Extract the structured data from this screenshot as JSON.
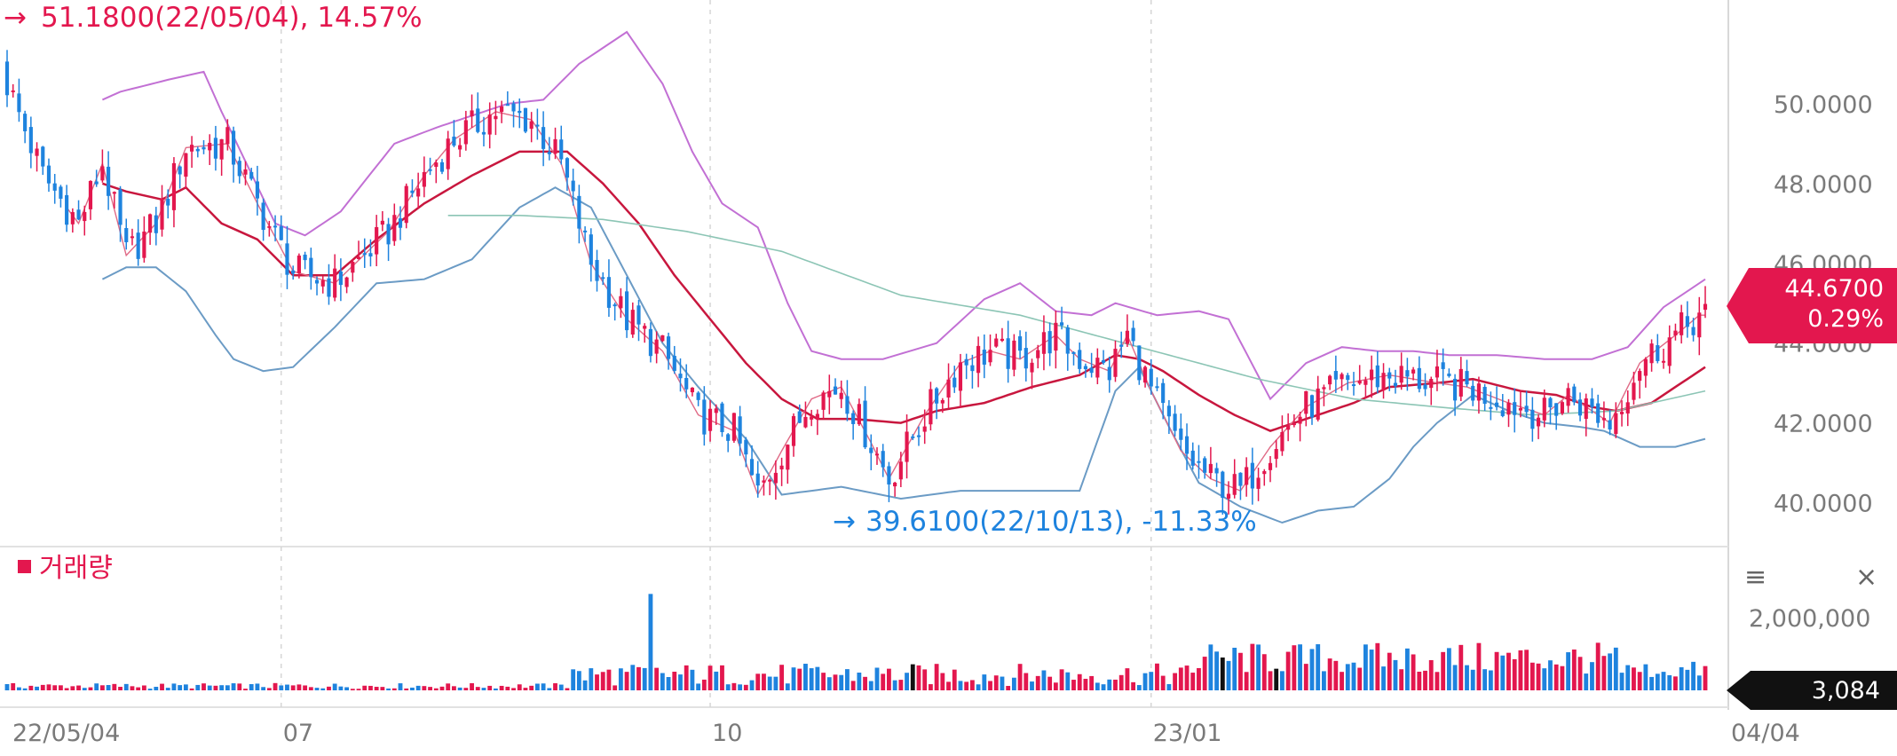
{
  "chart_data": {
    "type": "candlestick",
    "x_ticks": [
      "22/05/04",
      "07",
      "10",
      "23/01",
      "04/04"
    ],
    "y_ticks": [
      "40.0000",
      "42.0000",
      "44.0000",
      "46.0000",
      "48.0000",
      "50.0000"
    ],
    "ylim": [
      38.9,
      52.6
    ],
    "current_price": "44.6700",
    "current_change": "0.29%",
    "high_annotation": "51.1800(22/05/04), 14.57%",
    "low_annotation": "39.6100(22/10/13), -11.33%",
    "volume_title": "거래량",
    "volume_ticks": [
      "2,000,000"
    ],
    "volume_current": "3,084",
    "volume_max": 3000000,
    "colors": {
      "up": "#e3174e",
      "down": "#1e83de",
      "band": "#c270d4",
      "lower_band": "#6b9bc5",
      "ma": "#c8173e",
      "long_ma": "#8cc5b5"
    },
    "price_anchors": [
      [
        0,
        50.5
      ],
      [
        6,
        48.2
      ],
      [
        12,
        47.0
      ],
      [
        16,
        48.5
      ],
      [
        20,
        46.2
      ],
      [
        25,
        47.0
      ],
      [
        30,
        48.9
      ],
      [
        37,
        49.0
      ],
      [
        42,
        47.5
      ],
      [
        48,
        45.8
      ],
      [
        55,
        45.5
      ],
      [
        64,
        46.8
      ],
      [
        70,
        48.2
      ],
      [
        75,
        49.1
      ],
      [
        82,
        49.8
      ],
      [
        88,
        49.6
      ],
      [
        93,
        48.5
      ],
      [
        98,
        46.0
      ],
      [
        104,
        44.6
      ],
      [
        110,
        43.8
      ],
      [
        116,
        42.2
      ],
      [
        122,
        41.8
      ],
      [
        126,
        40.2
      ],
      [
        130,
        41.3
      ],
      [
        135,
        42.6
      ],
      [
        140,
        42.9
      ],
      [
        145,
        41.5
      ],
      [
        148,
        40.6
      ],
      [
        154,
        42.2
      ],
      [
        160,
        43.5
      ],
      [
        165,
        43.8
      ],
      [
        170,
        43.6
      ],
      [
        176,
        44.2
      ],
      [
        180,
        43.6
      ],
      [
        185,
        43.3
      ],
      [
        188,
        44.2
      ],
      [
        192,
        42.8
      ],
      [
        197,
        41.3
      ],
      [
        202,
        40.6
      ],
      [
        207,
        40.3
      ],
      [
        212,
        41.4
      ],
      [
        218,
        42.4
      ],
      [
        225,
        43.0
      ],
      [
        232,
        43.2
      ],
      [
        240,
        43.0
      ],
      [
        245,
        42.9
      ],
      [
        252,
        42.5
      ],
      [
        258,
        42.2
      ],
      [
        262,
        42.7
      ],
      [
        266,
        42.3
      ],
      [
        269,
        42.0
      ],
      [
        274,
        43.5
      ],
      [
        280,
        44.2
      ],
      [
        284,
        44.7
      ]
    ],
    "upper_band_anchors": [
      [
        16,
        50.1
      ],
      [
        19,
        50.3
      ],
      [
        27,
        50.6
      ],
      [
        33,
        50.8
      ],
      [
        36,
        49.8
      ],
      [
        45,
        47.0
      ],
      [
        50,
        46.7
      ],
      [
        56,
        47.3
      ],
      [
        65,
        49.0
      ],
      [
        72,
        49.4
      ],
      [
        84,
        50.0
      ],
      [
        90,
        50.1
      ],
      [
        96,
        51.0
      ],
      [
        104,
        51.8
      ],
      [
        110,
        50.5
      ],
      [
        115,
        48.8
      ],
      [
        120,
        47.5
      ],
      [
        126,
        46.9
      ],
      [
        131,
        45.0
      ],
      [
        135,
        43.8
      ],
      [
        140,
        43.6
      ],
      [
        147,
        43.6
      ],
      [
        156,
        44.0
      ],
      [
        164,
        45.1
      ],
      [
        170,
        45.5
      ],
      [
        176,
        44.8
      ],
      [
        182,
        44.7
      ],
      [
        186,
        45.0
      ],
      [
        193,
        44.7
      ],
      [
        200,
        44.8
      ],
      [
        205,
        44.6
      ],
      [
        212,
        42.6
      ],
      [
        218,
        43.5
      ],
      [
        224,
        43.9
      ],
      [
        230,
        43.8
      ],
      [
        236,
        43.8
      ],
      [
        242,
        43.7
      ],
      [
        250,
        43.7
      ],
      [
        258,
        43.6
      ],
      [
        266,
        43.6
      ],
      [
        272,
        43.9
      ],
      [
        278,
        44.9
      ],
      [
        285,
        45.6
      ]
    ],
    "lower_band_anchors": [
      [
        16,
        45.6
      ],
      [
        20,
        45.9
      ],
      [
        25,
        45.9
      ],
      [
        30,
        45.3
      ],
      [
        35,
        44.2
      ],
      [
        38,
        43.6
      ],
      [
        43,
        43.3
      ],
      [
        48,
        43.4
      ],
      [
        55,
        44.4
      ],
      [
        62,
        45.5
      ],
      [
        70,
        45.6
      ],
      [
        78,
        46.1
      ],
      [
        86,
        47.4
      ],
      [
        92,
        47.9
      ],
      [
        98,
        47.4
      ],
      [
        104,
        45.7
      ],
      [
        110,
        44.0
      ],
      [
        116,
        42.9
      ],
      [
        124,
        41.6
      ],
      [
        130,
        40.2
      ],
      [
        140,
        40.4
      ],
      [
        150,
        40.1
      ],
      [
        160,
        40.3
      ],
      [
        170,
        40.3
      ],
      [
        180,
        40.3
      ],
      [
        186,
        42.8
      ],
      [
        190,
        43.4
      ],
      [
        195,
        41.9
      ],
      [
        200,
        40.5
      ],
      [
        207,
        39.9
      ],
      [
        214,
        39.5
      ],
      [
        220,
        39.8
      ],
      [
        226,
        39.9
      ],
      [
        232,
        40.6
      ],
      [
        236,
        41.4
      ],
      [
        240,
        42.0
      ],
      [
        246,
        42.7
      ],
      [
        252,
        42.3
      ],
      [
        258,
        42.0
      ],
      [
        264,
        41.9
      ],
      [
        268,
        41.8
      ],
      [
        274,
        41.4
      ],
      [
        280,
        41.4
      ],
      [
        285,
        41.6
      ]
    ],
    "ma_anchors": [
      [
        16,
        48.0
      ],
      [
        20,
        47.8
      ],
      [
        26,
        47.6
      ],
      [
        30,
        47.9
      ],
      [
        36,
        47.0
      ],
      [
        42,
        46.6
      ],
      [
        48,
        45.7
      ],
      [
        55,
        45.7
      ],
      [
        62,
        46.6
      ],
      [
        70,
        47.5
      ],
      [
        78,
        48.2
      ],
      [
        86,
        48.8
      ],
      [
        94,
        48.8
      ],
      [
        100,
        48.0
      ],
      [
        106,
        47.0
      ],
      [
        112,
        45.7
      ],
      [
        118,
        44.6
      ],
      [
        124,
        43.5
      ],
      [
        130,
        42.6
      ],
      [
        136,
        42.1
      ],
      [
        142,
        42.1
      ],
      [
        150,
        42.0
      ],
      [
        156,
        42.3
      ],
      [
        164,
        42.5
      ],
      [
        172,
        42.9
      ],
      [
        180,
        43.2
      ],
      [
        186,
        43.7
      ],
      [
        190,
        43.6
      ],
      [
        194,
        43.3
      ],
      [
        200,
        42.7
      ],
      [
        206,
        42.2
      ],
      [
        212,
        41.8
      ],
      [
        218,
        42.1
      ],
      [
        226,
        42.5
      ],
      [
        232,
        42.9
      ],
      [
        240,
        43.0
      ],
      [
        246,
        43.1
      ],
      [
        254,
        42.8
      ],
      [
        260,
        42.7
      ],
      [
        266,
        42.4
      ],
      [
        270,
        42.3
      ],
      [
        276,
        42.5
      ],
      [
        285,
        43.4
      ]
    ],
    "long_ma_anchors": [
      [
        74,
        47.2
      ],
      [
        86,
        47.2
      ],
      [
        100,
        47.1
      ],
      [
        114,
        46.8
      ],
      [
        130,
        46.3
      ],
      [
        150,
        45.2
      ],
      [
        170,
        44.7
      ],
      [
        190,
        43.9
      ],
      [
        210,
        43.1
      ],
      [
        226,
        42.6
      ],
      [
        240,
        42.4
      ],
      [
        256,
        42.2
      ],
      [
        270,
        42.3
      ],
      [
        285,
        42.8
      ]
    ]
  }
}
